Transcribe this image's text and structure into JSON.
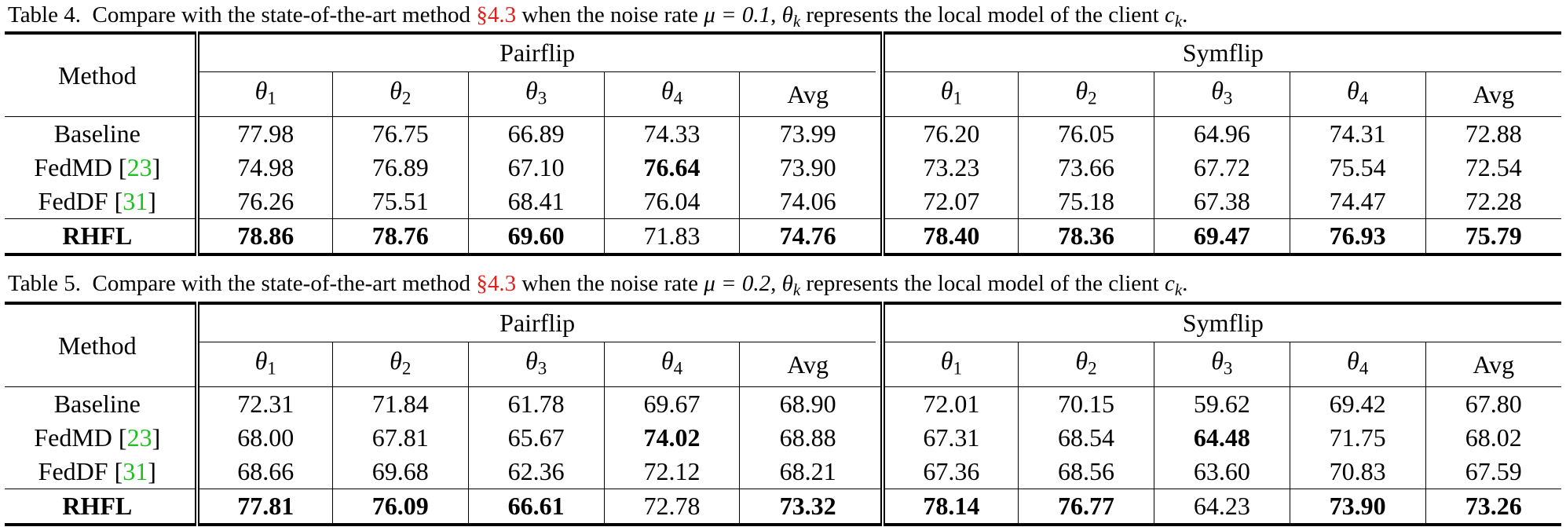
{
  "tables": [
    {
      "caption": {
        "label": "Table 4.",
        "prefix": "Compare with the state-of-the-art method ",
        "section": "§4.3",
        "middle": " when the noise rate ",
        "mu_value": "μ = 0.1",
        "rest": " represents the local model of the client "
      },
      "header": {
        "method": "Method",
        "group1": "Pairflip",
        "group2": "Symflip",
        "cols": [
          "θ1",
          "θ2",
          "θ3",
          "θ4",
          "Avg"
        ]
      },
      "rows": [
        {
          "method": "Baseline",
          "ref": "",
          "pair": [
            "77.98",
            "76.75",
            "66.89",
            "74.33",
            "73.99"
          ],
          "sym": [
            "76.20",
            "76.05",
            "64.96",
            "74.31",
            "72.88"
          ]
        },
        {
          "method": "FedMD",
          "ref": "23",
          "pair": [
            "74.98",
            "76.89",
            "67.10",
            "76.64",
            "73.90"
          ],
          "sym": [
            "73.23",
            "73.66",
            "67.72",
            "75.54",
            "72.54"
          ]
        },
        {
          "method": "FedDF",
          "ref": "31",
          "pair": [
            "76.26",
            "75.51",
            "68.41",
            "76.04",
            "74.06"
          ],
          "sym": [
            "72.07",
            "75.18",
            "67.38",
            "74.47",
            "72.28"
          ]
        },
        {
          "method": "RHFL",
          "ref": "",
          "pair": [
            "78.86",
            "78.76",
            "69.60",
            "71.83",
            "74.76"
          ],
          "sym": [
            "78.40",
            "78.36",
            "69.47",
            "76.93",
            "75.79"
          ]
        }
      ]
    },
    {
      "caption": {
        "label": "Table 5.",
        "prefix": "Compare with the state-of-the-art method ",
        "section": "§4.3",
        "middle": " when the noise rate ",
        "mu_value": "μ = 0.2",
        "rest": " represents the local model of the client "
      },
      "header": {
        "method": "Method",
        "group1": "Pairflip",
        "group2": "Symflip",
        "cols": [
          "θ1",
          "θ2",
          "θ3",
          "θ4",
          "Avg"
        ]
      },
      "rows": [
        {
          "method": "Baseline",
          "ref": "",
          "pair": [
            "72.31",
            "71.84",
            "61.78",
            "69.67",
            "68.90"
          ],
          "sym": [
            "72.01",
            "70.15",
            "59.62",
            "69.42",
            "67.80"
          ]
        },
        {
          "method": "FedMD",
          "ref": "23",
          "pair": [
            "68.00",
            "67.81",
            "65.67",
            "74.02",
            "68.88"
          ],
          "sym": [
            "67.31",
            "68.54",
            "64.48",
            "71.75",
            "68.02"
          ]
        },
        {
          "method": "FedDF",
          "ref": "31",
          "pair": [
            "68.66",
            "69.68",
            "62.36",
            "72.12",
            "68.21"
          ],
          "sym": [
            "67.36",
            "68.56",
            "63.60",
            "70.83",
            "67.59"
          ]
        },
        {
          "method": "RHFL",
          "ref": "",
          "pair": [
            "77.81",
            "76.09",
            "66.61",
            "72.78",
            "73.32"
          ],
          "sym": [
            "78.14",
            "76.77",
            "64.23",
            "73.90",
            "73.26"
          ]
        }
      ]
    }
  ]
}
